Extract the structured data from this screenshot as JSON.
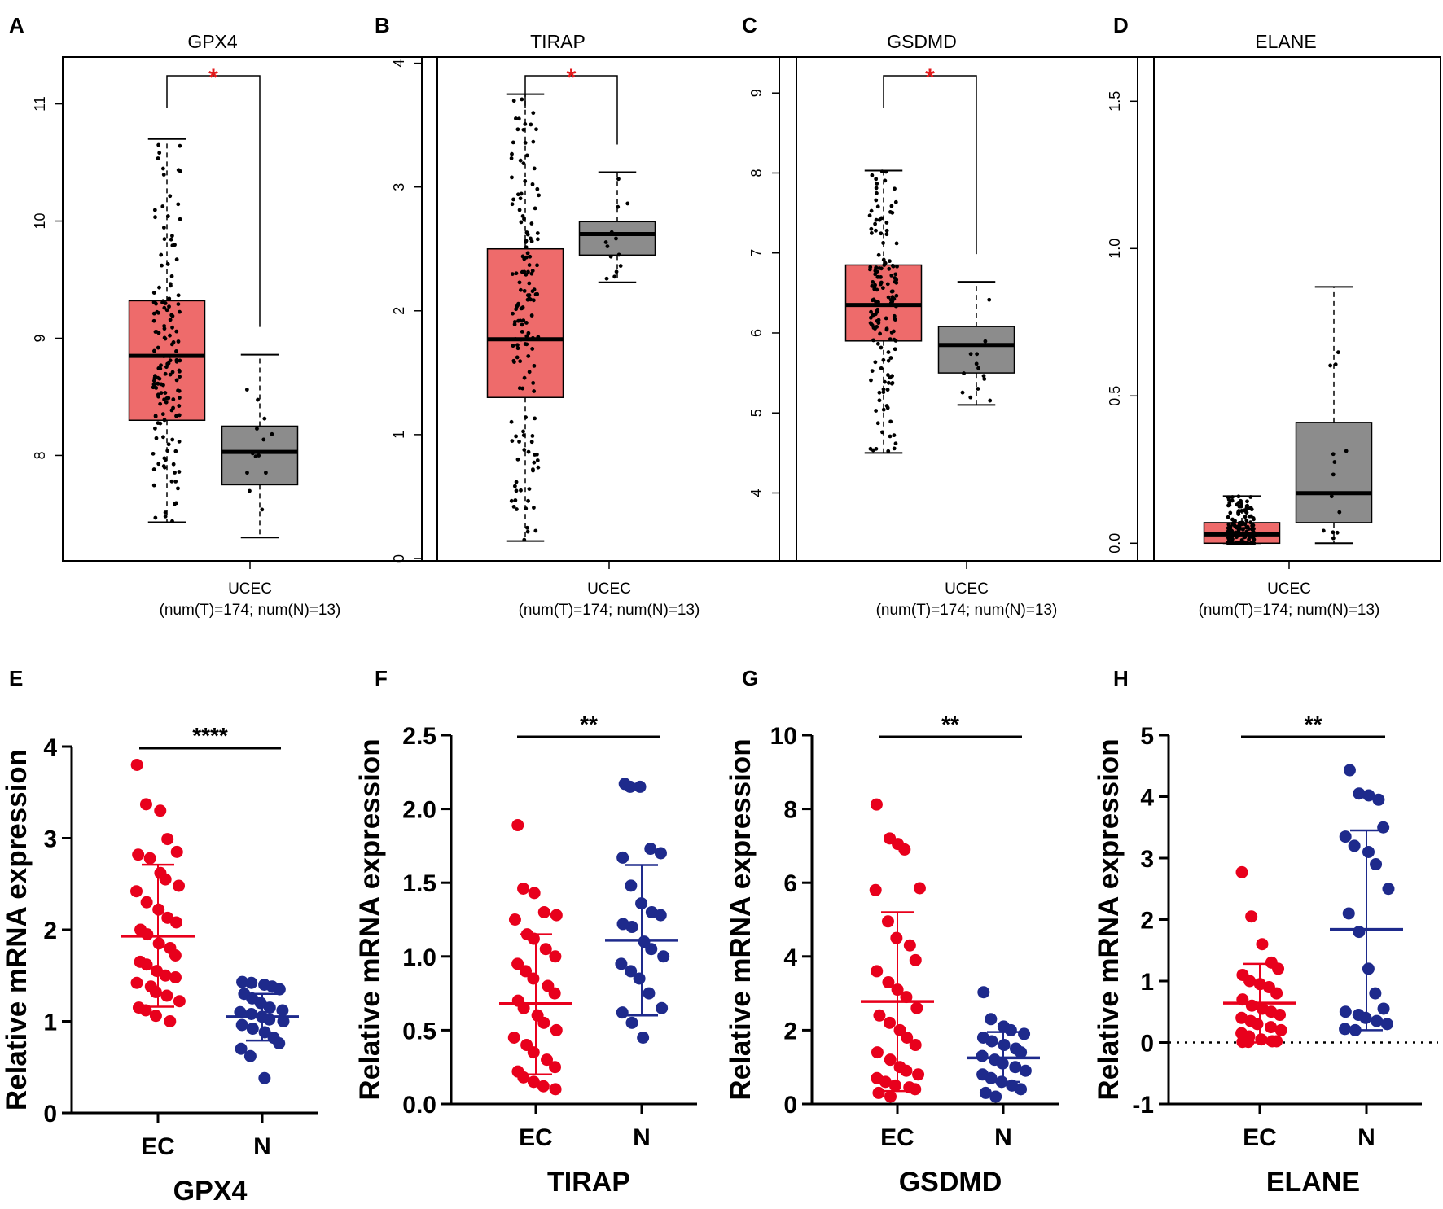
{
  "colors": {
    "tumor_box": "#ee6b6b",
    "normal_box": "#8c8c8c",
    "ec_dot": "#e8001c",
    "n_dot": "#1e2a8c",
    "sig_star": "#e31a1c"
  },
  "chart_data": [
    {
      "id": "A",
      "panel_label": "A",
      "type": "box",
      "title": "GPX4",
      "xlabel": "UCEC",
      "subtitle": "(num(T)=174; num(N)=13)",
      "ylim": [
        7.1,
        11.4
      ],
      "yticks": [
        8,
        9,
        10,
        11
      ],
      "significance": "*",
      "series": [
        {
          "name": "T",
          "n": 174,
          "min": 7.43,
          "q1": 8.3,
          "median": 8.85,
          "q3": 9.32,
          "max": 10.7
        },
        {
          "name": "N",
          "n": 13,
          "min": 7.3,
          "q1": 7.75,
          "median": 8.03,
          "q3": 8.25,
          "max": 8.86
        }
      ]
    },
    {
      "id": "B",
      "panel_label": "B",
      "type": "box",
      "title": "TIRAP",
      "xlabel": "UCEC",
      "subtitle": "(num(T)=174; num(N)=13)",
      "ylim": [
        -0.02,
        4.05
      ],
      "yticks": [
        0,
        1,
        2,
        3,
        4
      ],
      "significance": "*",
      "series": [
        {
          "name": "T",
          "n": 174,
          "min": 0.14,
          "q1": 1.3,
          "median": 1.77,
          "q3": 2.5,
          "max": 3.75
        },
        {
          "name": "N",
          "n": 13,
          "min": 2.23,
          "q1": 2.45,
          "median": 2.62,
          "q3": 2.72,
          "max": 3.12
        }
      ]
    },
    {
      "id": "C",
      "panel_label": "C",
      "type": "box",
      "title": "GSDMD",
      "xlabel": "UCEC",
      "subtitle": "(num(T)=174; num(N)=13)",
      "ylim": [
        3.15,
        9.45
      ],
      "yticks": [
        4,
        5,
        6,
        7,
        8,
        9
      ],
      "significance": "*",
      "series": [
        {
          "name": "T",
          "n": 174,
          "min": 4.5,
          "q1": 5.9,
          "median": 6.35,
          "q3": 6.85,
          "max": 8.03
        },
        {
          "name": "N",
          "n": 13,
          "min": 5.1,
          "q1": 5.5,
          "median": 5.85,
          "q3": 6.08,
          "max": 6.64
        }
      ]
    },
    {
      "id": "D",
      "panel_label": "D",
      "type": "box",
      "title": "ELANE",
      "xlabel": "UCEC",
      "subtitle": "(num(T)=174; num(N)=13)",
      "ylim": [
        -0.06,
        1.65
      ],
      "yticks": [
        0.0,
        0.5,
        1.0,
        1.5
      ],
      "ytick_labels": [
        "0.0",
        "0.5",
        "1.0",
        "1.5"
      ],
      "significance": "",
      "series": [
        {
          "name": "T",
          "n": 174,
          "min": 0.0,
          "q1": 0.0,
          "median": 0.03,
          "q3": 0.07,
          "max": 0.16
        },
        {
          "name": "N",
          "n": 13,
          "min": 0.0,
          "q1": 0.07,
          "median": 0.17,
          "q3": 0.41,
          "max": 0.87
        }
      ]
    },
    {
      "id": "E",
      "panel_label": "E",
      "type": "scatter",
      "xlabel": "GPX4",
      "ylabel": "Relative mRNA expression",
      "categories": [
        "EC",
        "N"
      ],
      "ylim": [
        0,
        4
      ],
      "yticks": [
        0,
        1,
        2,
        3,
        4
      ],
      "significance": "****",
      "zero_line": false,
      "series": [
        {
          "name": "EC",
          "mean": 1.93,
          "sd_low": 1.16,
          "sd_high": 2.71,
          "values": [
            3.8,
            3.37,
            3.3,
            2.99,
            2.85,
            2.82,
            2.78,
            2.62,
            2.55,
            2.48,
            2.42,
            2.3,
            2.22,
            2.13,
            2.08,
            2.0,
            1.95,
            1.85,
            1.8,
            1.72,
            1.65,
            1.62,
            1.55,
            1.5,
            1.48,
            1.42,
            1.38,
            1.32,
            1.28,
            1.22,
            1.15,
            1.12,
            1.06,
            1.0
          ]
        },
        {
          "name": "N",
          "mean": 1.05,
          "sd_low": 0.79,
          "sd_high": 1.3,
          "values": [
            1.43,
            1.42,
            1.4,
            1.38,
            1.35,
            1.3,
            1.25,
            1.2,
            1.15,
            1.12,
            1.1,
            1.08,
            1.05,
            1.02,
            1.0,
            0.96,
            0.92,
            0.88,
            0.82,
            0.76,
            0.7,
            0.62,
            0.38
          ]
        }
      ]
    },
    {
      "id": "F",
      "panel_label": "F",
      "type": "scatter",
      "xlabel": "TIRAP",
      "ylabel": "Relative mRNA expression",
      "categories": [
        "EC",
        "N"
      ],
      "ylim": [
        0,
        2.5
      ],
      "yticks": [
        0,
        0.5,
        1.0,
        1.5,
        2.0,
        2.5
      ],
      "ytick_labels": [
        "0.0",
        "0.5",
        "1.0",
        "1.5",
        "2.0",
        "2.5"
      ],
      "significance": "**",
      "zero_line": false,
      "series": [
        {
          "name": "EC",
          "mean": 0.68,
          "sd_low": 0.2,
          "sd_high": 1.15,
          "values": [
            1.89,
            1.46,
            1.43,
            1.3,
            1.28,
            1.25,
            1.15,
            1.12,
            1.05,
            1.0,
            0.95,
            0.9,
            0.85,
            0.8,
            0.75,
            0.7,
            0.65,
            0.6,
            0.55,
            0.5,
            0.45,
            0.4,
            0.35,
            0.3,
            0.25,
            0.22,
            0.18,
            0.15,
            0.12,
            0.1
          ]
        },
        {
          "name": "N",
          "mean": 1.11,
          "sd_low": 0.6,
          "sd_high": 1.62,
          "values": [
            2.17,
            2.15,
            2.15,
            1.73,
            1.7,
            1.67,
            1.48,
            1.36,
            1.3,
            1.28,
            1.22,
            1.2,
            1.1,
            1.05,
            1.0,
            0.95,
            0.9,
            0.85,
            0.75,
            0.65,
            0.62,
            0.55,
            0.45
          ]
        }
      ]
    },
    {
      "id": "G",
      "panel_label": "G",
      "type": "scatter",
      "xlabel": "GSDMD",
      "ylabel": "Relative mRNA expression",
      "categories": [
        "EC",
        "N"
      ],
      "ylim": [
        0,
        10
      ],
      "yticks": [
        0,
        2,
        4,
        6,
        8,
        10
      ],
      "significance": "**",
      "zero_line": false,
      "series": [
        {
          "name": "EC",
          "mean": 2.78,
          "sd_low": 0.35,
          "sd_high": 5.2,
          "values": [
            8.12,
            7.2,
            7.05,
            6.9,
            5.85,
            5.8,
            4.95,
            4.5,
            4.3,
            3.9,
            3.6,
            3.3,
            3.1,
            2.9,
            2.6,
            2.4,
            2.2,
            2.0,
            1.8,
            1.6,
            1.4,
            1.2,
            1.0,
            0.9,
            0.8,
            0.7,
            0.6,
            0.5,
            0.45,
            0.4,
            0.3,
            0.2
          ]
        },
        {
          "name": "N",
          "mean": 1.25,
          "sd_low": 0.6,
          "sd_high": 1.95,
          "values": [
            3.03,
            2.3,
            2.1,
            2.0,
            1.9,
            1.8,
            1.7,
            1.6,
            1.5,
            1.4,
            1.3,
            1.2,
            1.1,
            1.0,
            0.9,
            0.8,
            0.7,
            0.6,
            0.5,
            0.4,
            0.3,
            0.2
          ]
        }
      ]
    },
    {
      "id": "H",
      "panel_label": "H",
      "type": "scatter",
      "xlabel": "ELANE",
      "ylabel": "Relative mRNA expression",
      "categories": [
        "EC",
        "N"
      ],
      "ylim": [
        -1,
        5
      ],
      "yticks": [
        -1,
        0,
        1,
        2,
        3,
        4,
        5
      ],
      "significance": "**",
      "zero_line": true,
      "series": [
        {
          "name": "EC",
          "mean": 0.64,
          "sd_low": 0.0,
          "sd_high": 1.28,
          "values": [
            2.77,
            2.05,
            1.6,
            1.3,
            1.2,
            1.1,
            1.0,
            0.95,
            0.9,
            0.8,
            0.7,
            0.6,
            0.55,
            0.5,
            0.45,
            0.4,
            0.35,
            0.3,
            0.25,
            0.2,
            0.15,
            0.1,
            0.05,
            0.02,
            0.02,
            0.01,
            0.01
          ]
        },
        {
          "name": "N",
          "mean": 1.84,
          "sd_low": 0.2,
          "sd_high": 3.45,
          "values": [
            4.43,
            4.05,
            4.02,
            3.95,
            3.5,
            3.35,
            3.2,
            3.1,
            2.9,
            2.5,
            2.1,
            1.8,
            1.2,
            0.8,
            0.55,
            0.5,
            0.45,
            0.4,
            0.35,
            0.3,
            0.22,
            0.2
          ]
        }
      ]
    }
  ]
}
